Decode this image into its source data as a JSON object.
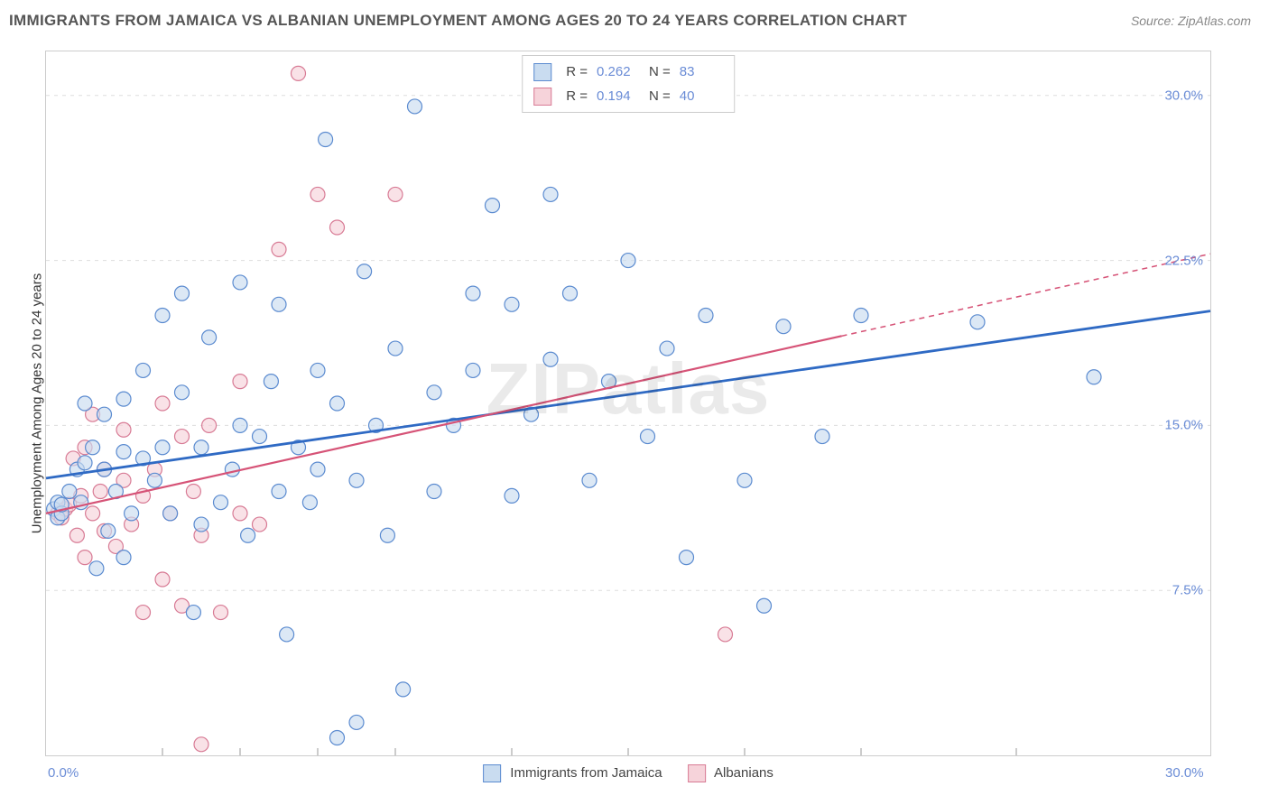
{
  "header": {
    "title": "IMMIGRANTS FROM JAMAICA VS ALBANIAN UNEMPLOYMENT AMONG AGES 20 TO 24 YEARS CORRELATION CHART",
    "source": "Source: ZipAtlas.com"
  },
  "watermark": "ZIPatlas",
  "chart": {
    "type": "scatter",
    "xlim": [
      0,
      30
    ],
    "ylim": [
      0,
      32
    ],
    "y_grid_values": [
      7.5,
      15.0,
      22.5,
      30.0
    ],
    "y_tick_labels": [
      "7.5%",
      "15.0%",
      "22.5%",
      "30.0%"
    ],
    "x_tick_values": [
      0,
      30
    ],
    "x_tick_labels": [
      "0.0%",
      "30.0%"
    ],
    "x_minor_ticks": [
      3.0,
      5.0,
      7.0,
      9.0,
      12.0,
      15.0,
      18.0,
      21.0,
      25.0
    ],
    "y_axis_label": "Unemployment Among Ages 20 to 24 years",
    "plot_border": "#cccccc",
    "grid_color": "#dddddd",
    "tick_label_color": "#6a8cd6",
    "background": "#ffffff",
    "marker_radius": 8,
    "marker_stroke_width": 1.2,
    "marker_opacity": 0.65,
    "series": [
      {
        "name": "Immigrants from Jamaica",
        "legend_label": "Immigrants from Jamaica",
        "fill": "#c9dcf0",
        "stroke": "#5b8bd0",
        "line_color": "#2f6ac4",
        "line_width": 2.8,
        "R": "0.262",
        "N": "83",
        "trend": {
          "x1": 0,
          "y1": 12.6,
          "x2": 30,
          "y2": 20.2
        },
        "points": [
          [
            0.2,
            11.2
          ],
          [
            0.3,
            10.8
          ],
          [
            0.3,
            11.5
          ],
          [
            0.4,
            11.0
          ],
          [
            0.4,
            11.4
          ],
          [
            0.6,
            12.0
          ],
          [
            0.8,
            13.0
          ],
          [
            0.9,
            11.5
          ],
          [
            1.0,
            13.3
          ],
          [
            1.0,
            16.0
          ],
          [
            1.2,
            14.0
          ],
          [
            1.3,
            8.5
          ],
          [
            1.5,
            13.0
          ],
          [
            1.5,
            15.5
          ],
          [
            1.6,
            10.2
          ],
          [
            1.8,
            12.0
          ],
          [
            2.0,
            9.0
          ],
          [
            2.0,
            13.8
          ],
          [
            2.0,
            16.2
          ],
          [
            2.2,
            11.0
          ],
          [
            2.5,
            13.5
          ],
          [
            2.5,
            17.5
          ],
          [
            2.8,
            12.5
          ],
          [
            3.0,
            14.0
          ],
          [
            3.0,
            20.0
          ],
          [
            3.2,
            11.0
          ],
          [
            3.5,
            16.5
          ],
          [
            3.5,
            21.0
          ],
          [
            3.8,
            6.5
          ],
          [
            4.0,
            10.5
          ],
          [
            4.0,
            14.0
          ],
          [
            4.2,
            19.0
          ],
          [
            4.5,
            11.5
          ],
          [
            4.8,
            13.0
          ],
          [
            5.0,
            15.0
          ],
          [
            5.0,
            21.5
          ],
          [
            5.2,
            10.0
          ],
          [
            5.5,
            14.5
          ],
          [
            5.8,
            17.0
          ],
          [
            6.0,
            12.0
          ],
          [
            6.0,
            20.5
          ],
          [
            6.2,
            5.5
          ],
          [
            6.5,
            14.0
          ],
          [
            6.8,
            11.5
          ],
          [
            7.0,
            13.0
          ],
          [
            7.0,
            17.5
          ],
          [
            7.2,
            28.0
          ],
          [
            7.5,
            16.0
          ],
          [
            7.5,
            0.8
          ],
          [
            8.0,
            1.5
          ],
          [
            8.0,
            12.5
          ],
          [
            8.2,
            22.0
          ],
          [
            8.5,
            15.0
          ],
          [
            8.8,
            10.0
          ],
          [
            9.0,
            18.5
          ],
          [
            9.2,
            3.0
          ],
          [
            9.5,
            29.5
          ],
          [
            10.0,
            12.0
          ],
          [
            10.0,
            16.5
          ],
          [
            10.5,
            15.0
          ],
          [
            11.0,
            17.5
          ],
          [
            11.0,
            21.0
          ],
          [
            11.5,
            25.0
          ],
          [
            12.0,
            11.8
          ],
          [
            12.0,
            20.5
          ],
          [
            12.5,
            15.5
          ],
          [
            13.0,
            18.0
          ],
          [
            13.0,
            25.5
          ],
          [
            13.5,
            21.0
          ],
          [
            14.0,
            12.5
          ],
          [
            14.5,
            17.0
          ],
          [
            15.0,
            22.5
          ],
          [
            15.5,
            14.5
          ],
          [
            16.0,
            18.5
          ],
          [
            16.5,
            9.0
          ],
          [
            17.0,
            20.0
          ],
          [
            18.0,
            12.5
          ],
          [
            18.5,
            6.8
          ],
          [
            19.0,
            19.5
          ],
          [
            20.0,
            14.5
          ],
          [
            21.0,
            20.0
          ],
          [
            24.0,
            19.7
          ],
          [
            27.0,
            17.2
          ]
        ]
      },
      {
        "name": "Albanians",
        "legend_label": "Albanians",
        "fill": "#f6d3da",
        "stroke": "#d87b95",
        "line_color": "#d65377",
        "line_width": 2.2,
        "line_solid_end_x": 20.5,
        "dash_pattern": "6,5",
        "R": "0.194",
        "N": "40",
        "trend": {
          "x1": 0,
          "y1": 11.0,
          "x2": 30,
          "y2": 22.8
        },
        "points": [
          [
            0.3,
            11.0
          ],
          [
            0.4,
            10.8
          ],
          [
            0.5,
            11.2
          ],
          [
            0.6,
            11.4
          ],
          [
            0.7,
            13.5
          ],
          [
            0.8,
            10.0
          ],
          [
            0.9,
            11.8
          ],
          [
            1.0,
            14.0
          ],
          [
            1.0,
            9.0
          ],
          [
            1.2,
            15.5
          ],
          [
            1.2,
            11.0
          ],
          [
            1.4,
            12.0
          ],
          [
            1.5,
            10.2
          ],
          [
            1.5,
            13.0
          ],
          [
            1.8,
            9.5
          ],
          [
            2.0,
            12.5
          ],
          [
            2.0,
            14.8
          ],
          [
            2.2,
            10.5
          ],
          [
            2.5,
            11.8
          ],
          [
            2.5,
            6.5
          ],
          [
            2.8,
            13.0
          ],
          [
            3.0,
            8.0
          ],
          [
            3.0,
            16.0
          ],
          [
            3.2,
            11.0
          ],
          [
            3.5,
            6.8
          ],
          [
            3.5,
            14.5
          ],
          [
            3.8,
            12.0
          ],
          [
            4.0,
            0.5
          ],
          [
            4.0,
            10.0
          ],
          [
            4.2,
            15.0
          ],
          [
            4.5,
            6.5
          ],
          [
            5.0,
            11.0
          ],
          [
            5.0,
            17.0
          ],
          [
            5.5,
            10.5
          ],
          [
            6.0,
            23.0
          ],
          [
            6.5,
            31.0
          ],
          [
            7.0,
            25.5
          ],
          [
            7.5,
            24.0
          ],
          [
            9.0,
            25.5
          ],
          [
            17.5,
            5.5
          ]
        ]
      }
    ]
  }
}
